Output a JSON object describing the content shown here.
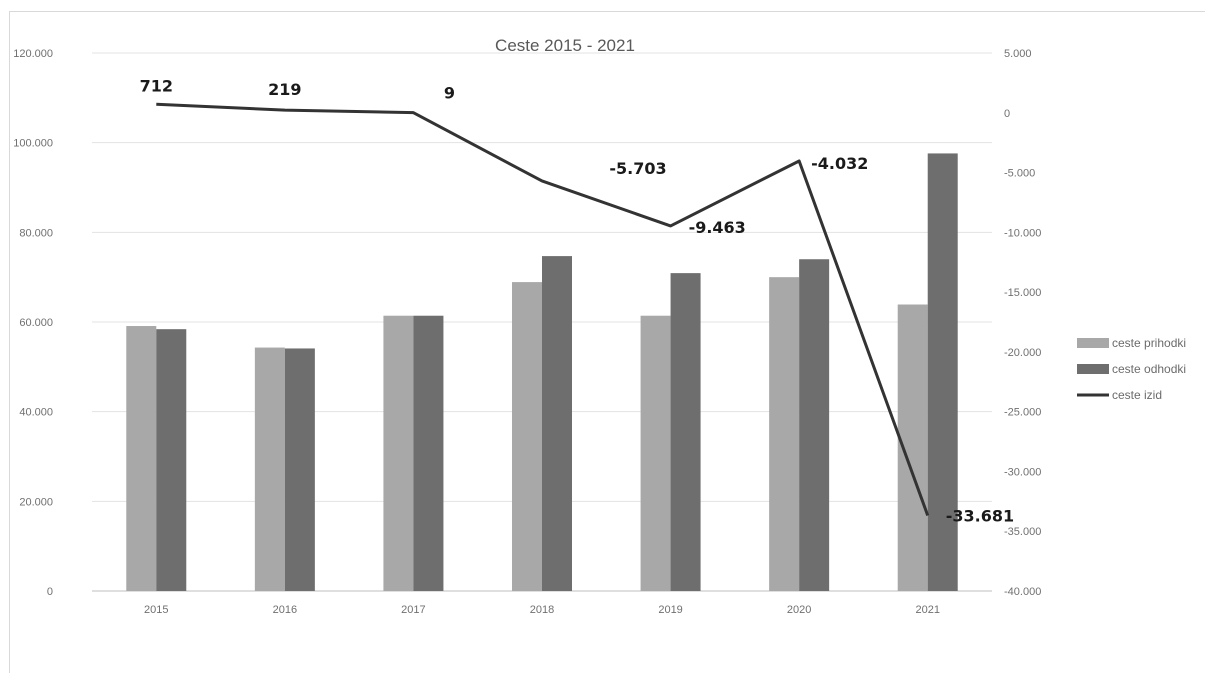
{
  "chart_data": {
    "type": "bar",
    "title": "Ceste 2015 - 2021",
    "categories": [
      "2015",
      "2016",
      "2017",
      "2018",
      "2019",
      "2020",
      "2021"
    ],
    "series": [
      {
        "name": "ceste prihodki",
        "kind": "bar",
        "axis": "left",
        "color": "#a8a8a8",
        "values": [
          59100,
          54300,
          61400,
          68900,
          61400,
          70000,
          63900
        ]
      },
      {
        "name": "ceste odhodki",
        "kind": "bar",
        "axis": "left",
        "color": "#6e6e6e",
        "values": [
          58400,
          54100,
          61400,
          74700,
          70900,
          74000,
          97600
        ]
      },
      {
        "name": "ceste izid",
        "kind": "line",
        "axis": "right",
        "color": "#333333",
        "values": [
          712,
          219,
          9,
          -5703,
          -9463,
          -4032,
          -33681
        ],
        "labels": [
          "712",
          "219",
          "9",
          "-5.703",
          "-9.463",
          "-4.032",
          "-33.681"
        ]
      }
    ],
    "y_left": {
      "min": 0,
      "max": 120000,
      "ticks": [
        "0",
        "20.000",
        "40.000",
        "60.000",
        "80.000",
        "100.000",
        "120.000"
      ]
    },
    "y_right": {
      "min": -40000,
      "max": 5000,
      "ticks": [
        "-40.000",
        "-35.000",
        "-30.000",
        "-25.000",
        "-20.000",
        "-15.000",
        "-10.000",
        "-5.000",
        "0",
        "5.000"
      ]
    },
    "grid": true,
    "legend_position": "right"
  }
}
